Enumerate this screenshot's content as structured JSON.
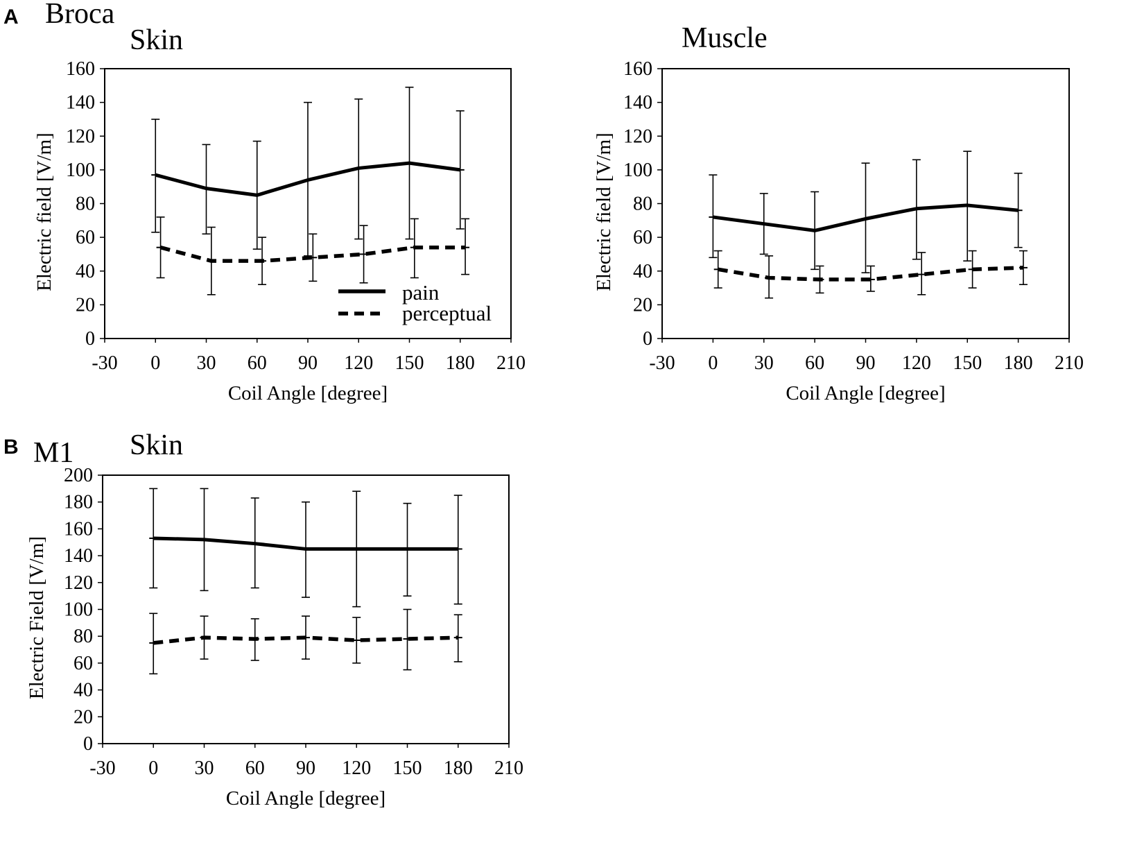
{
  "figure": {
    "panelA": {
      "letter": "A",
      "region": "Broca"
    },
    "panelB": {
      "letter": "B",
      "region": "M1"
    }
  },
  "legend": {
    "pain": "pain",
    "perceptual": "perceptual"
  },
  "colors": {
    "ink": "#000000",
    "background": "#ffffff"
  },
  "chart_data": [
    {
      "id": "broca-skin",
      "type": "line",
      "title": "Skin",
      "xlabel": "Coil Angle [degree]",
      "ylabel": "Electric field [V/m]",
      "xlim": [
        -30,
        210
      ],
      "ylim": [
        0,
        160
      ],
      "xticks": [
        -30,
        0,
        30,
        60,
        90,
        120,
        150,
        180,
        210
      ],
      "yticks": [
        0,
        20,
        40,
        60,
        80,
        100,
        120,
        140,
        160
      ],
      "legend": [
        "pain",
        "perceptual"
      ],
      "legend_position": "lower-right",
      "x": [
        0,
        30,
        60,
        90,
        120,
        150,
        180
      ],
      "series": [
        {
          "name": "pain",
          "style": "solid",
          "x": [
            0,
            30,
            60,
            90,
            120,
            150,
            180
          ],
          "values": [
            97,
            89,
            85,
            94,
            101,
            104,
            100
          ],
          "err_lo": [
            63,
            62,
            53,
            49,
            59,
            59,
            65
          ],
          "err_hi": [
            130,
            115,
            117,
            140,
            142,
            149,
            135
          ]
        },
        {
          "name": "perceptual",
          "style": "dashed",
          "x": [
            3,
            33,
            63,
            93,
            123,
            153,
            183
          ],
          "values": [
            54,
            46,
            46,
            48,
            50,
            54,
            54
          ],
          "err_lo": [
            36,
            26,
            32,
            34,
            33,
            36,
            38
          ],
          "err_hi": [
            72,
            66,
            60,
            62,
            67,
            71,
            71
          ]
        }
      ]
    },
    {
      "id": "broca-muscle",
      "type": "line",
      "title": "Muscle",
      "xlabel": "Coil Angle [degree]",
      "ylabel": "Electric field [V/m]",
      "xlim": [
        -30,
        210
      ],
      "ylim": [
        0,
        160
      ],
      "xticks": [
        -30,
        0,
        30,
        60,
        90,
        120,
        150,
        180,
        210
      ],
      "yticks": [
        0,
        20,
        40,
        60,
        80,
        100,
        120,
        140,
        160
      ],
      "legend": [],
      "x": [
        0,
        30,
        60,
        90,
        120,
        150,
        180
      ],
      "series": [
        {
          "name": "pain",
          "style": "solid",
          "x": [
            0,
            30,
            60,
            90,
            120,
            150,
            180
          ],
          "values": [
            72,
            68,
            64,
            71,
            77,
            79,
            76
          ],
          "err_lo": [
            48,
            50,
            41,
            39,
            47,
            46,
            54
          ],
          "err_hi": [
            97,
            86,
            87,
            104,
            106,
            111,
            98
          ]
        },
        {
          "name": "perceptual",
          "style": "dashed",
          "x": [
            3,
            33,
            63,
            93,
            123,
            153,
            183
          ],
          "values": [
            41,
            36,
            35,
            35,
            38,
            41,
            42
          ],
          "err_lo": [
            30,
            24,
            27,
            28,
            26,
            30,
            32
          ],
          "err_hi": [
            52,
            49,
            43,
            43,
            51,
            52,
            52
          ]
        }
      ]
    },
    {
      "id": "m1-skin",
      "type": "line",
      "title": "Skin",
      "xlabel": "Coil Angle [degree]",
      "ylabel": "Electric Field [V/m]",
      "xlim": [
        -30,
        210
      ],
      "ylim": [
        0,
        200
      ],
      "xticks": [
        -30,
        0,
        30,
        60,
        90,
        120,
        150,
        180,
        210
      ],
      "yticks": [
        0,
        20,
        40,
        60,
        80,
        100,
        120,
        140,
        160,
        180,
        200
      ],
      "legend": [],
      "x": [
        0,
        30,
        60,
        90,
        120,
        150,
        180
      ],
      "series": [
        {
          "name": "pain",
          "style": "solid",
          "x": [
            0,
            30,
            60,
            90,
            120,
            150,
            180
          ],
          "values": [
            153,
            152,
            149,
            145,
            145,
            145,
            145
          ],
          "err_lo": [
            116,
            114,
            116,
            109,
            102,
            110,
            104
          ],
          "err_hi": [
            190,
            190,
            183,
            180,
            188,
            179,
            185
          ]
        },
        {
          "name": "perceptual",
          "style": "dashed",
          "x": [
            0,
            30,
            60,
            90,
            120,
            150,
            180
          ],
          "values": [
            75,
            79,
            78,
            79,
            77,
            78,
            79
          ],
          "err_lo": [
            52,
            63,
            62,
            63,
            60,
            55,
            61
          ],
          "err_hi": [
            97,
            95,
            93,
            95,
            94,
            100,
            96
          ]
        }
      ]
    }
  ]
}
